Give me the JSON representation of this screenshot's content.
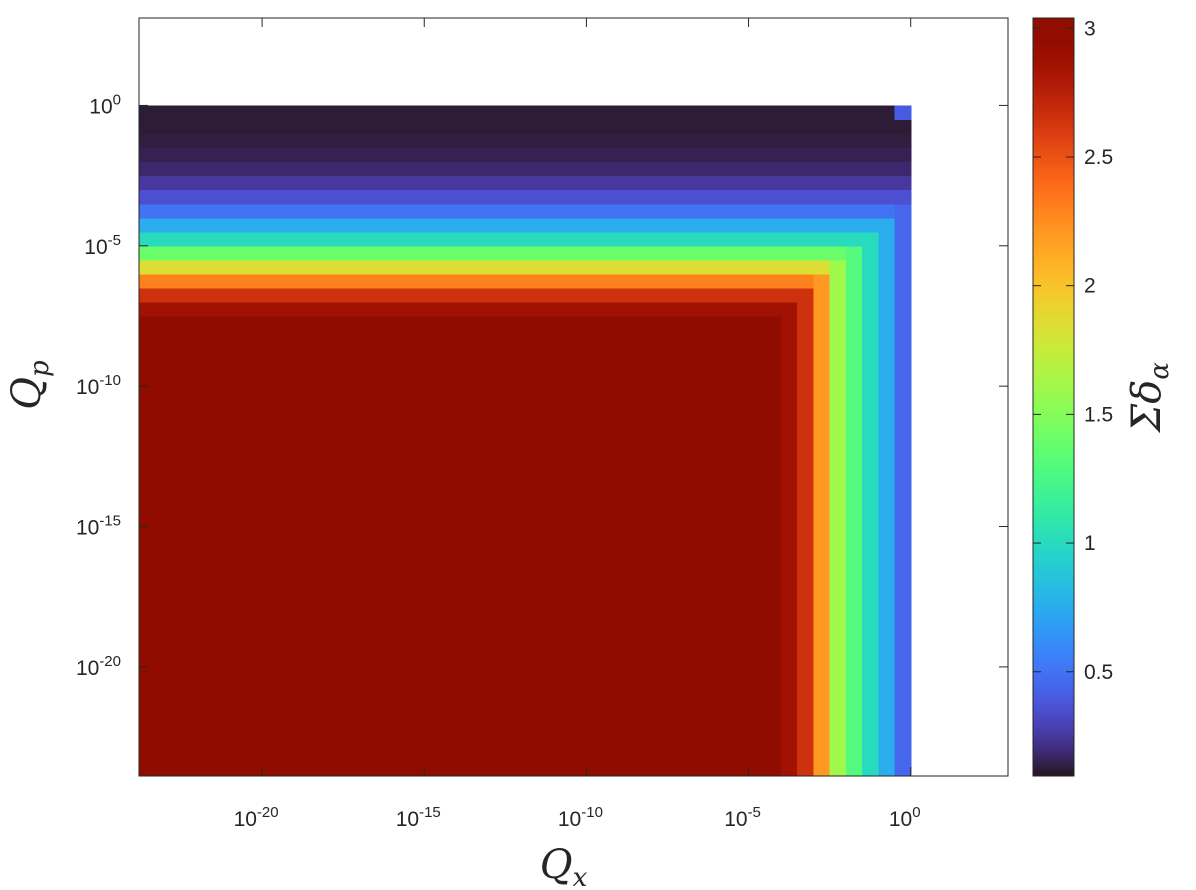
{
  "chart_data": {
    "type": "heatmap",
    "colormap": "turbo",
    "xscale": "log",
    "yscale": "log",
    "xlabel": {
      "text": "Q",
      "subscript": "x"
    },
    "ylabel": {
      "text": "Q",
      "subscript": "p"
    },
    "colorbar_label": {
      "text": "Σδ",
      "subscript": "α"
    },
    "xlim": [
      1.6e-24,
      1000
    ],
    "ylim": [
      1.3e-24,
      1300
    ],
    "xticks": [
      {
        "value": 1e-20,
        "label": "10",
        "exponent": "-20"
      },
      {
        "value": 1e-15,
        "label": "10",
        "exponent": "-15"
      },
      {
        "value": 1e-10,
        "label": "10",
        "exponent": "-10"
      },
      {
        "value": 1e-05,
        "label": "10",
        "exponent": "-5"
      },
      {
        "value": 1,
        "label": "10",
        "exponent": "0"
      }
    ],
    "yticks": [
      {
        "value": 1e-20,
        "label": "10",
        "exponent": "-20"
      },
      {
        "value": 1e-15,
        "label": "10",
        "exponent": "-15"
      },
      {
        "value": 1e-10,
        "label": "10",
        "exponent": "-10"
      },
      {
        "value": 1e-05,
        "label": "10",
        "exponent": "-5"
      },
      {
        "value": 1,
        "label": "10",
        "exponent": "0"
      }
    ],
    "clim": [
      0.095,
      3.04
    ],
    "cticks": [
      0.5,
      1,
      1.5,
      2,
      2.5,
      3
    ],
    "x_edges": [
      1.6e-24,
      0.0001,
      0.000316,
      0.001,
      0.00316,
      0.01,
      0.0316,
      0.1,
      0.316,
      1
    ],
    "y_edges": [
      1.3e-24,
      3.16e-08,
      1e-07,
      3.16e-07,
      1e-06,
      3.16e-06,
      1e-05,
      3.16e-05,
      0.0001,
      0.000316,
      0.001,
      0.00316,
      0.01,
      0.0316,
      0.1,
      0.316,
      1
    ],
    "z": [
      [
        3,
        2.85,
        2.65,
        2.2,
        1.6,
        1.3,
        1.0,
        0.75,
        0.45
      ],
      [
        2.85,
        2.85,
        2.65,
        2.2,
        1.6,
        1.3,
        1.0,
        0.75,
        0.45
      ],
      [
        2.65,
        2.65,
        2.65,
        2.2,
        1.6,
        1.3,
        1.0,
        0.75,
        0.45
      ],
      [
        2.3,
        2.3,
        2.3,
        2.2,
        1.6,
        1.3,
        1.0,
        0.75,
        0.45
      ],
      [
        1.85,
        1.85,
        1.85,
        1.85,
        1.6,
        1.3,
        1.0,
        0.75,
        0.45
      ],
      [
        1.4,
        1.4,
        1.4,
        1.4,
        1.4,
        1.3,
        1.0,
        0.75,
        0.45
      ],
      [
        1.0,
        1.0,
        1.0,
        1.0,
        1.0,
        1.0,
        1.0,
        0.75,
        0.45
      ],
      [
        0.75,
        0.75,
        0.75,
        0.75,
        0.75,
        0.75,
        0.75,
        0.75,
        0.45
      ],
      [
        0.5,
        0.5,
        0.5,
        0.5,
        0.5,
        0.5,
        0.5,
        0.5,
        0.45
      ],
      [
        0.35,
        0.35,
        0.35,
        0.35,
        0.35,
        0.35,
        0.35,
        0.35,
        0.35
      ],
      [
        0.25,
        0.25,
        0.25,
        0.25,
        0.25,
        0.25,
        0.25,
        0.25,
        0.25
      ],
      [
        0.18,
        0.18,
        0.18,
        0.18,
        0.18,
        0.18,
        0.18,
        0.18,
        0.18
      ],
      [
        0.15,
        0.15,
        0.15,
        0.15,
        0.15,
        0.15,
        0.15,
        0.15,
        0.15
      ],
      [
        0.13,
        0.13,
        0.13,
        0.13,
        0.13,
        0.13,
        0.13,
        0.13,
        0.13
      ],
      [
        0.12,
        0.12,
        0.12,
        0.12,
        0.12,
        0.12,
        0.12,
        0.12,
        0.12
      ],
      [
        0.12,
        0.12,
        0.12,
        0.12,
        0.12,
        0.12,
        0.12,
        0.12,
        0.4
      ]
    ]
  }
}
